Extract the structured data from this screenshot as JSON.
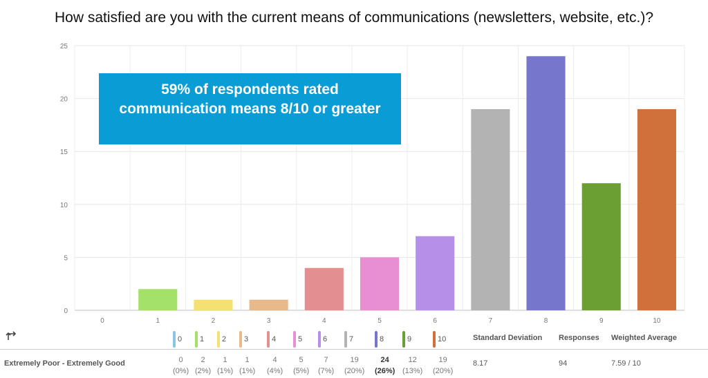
{
  "title": "How satisfied are you with the current means of communications (newsletters, website, etc.)?",
  "callout": "59% of respondents rated communication means 8/10 or greater",
  "chart_data": {
    "type": "bar",
    "categories": [
      "0",
      "1",
      "2",
      "3",
      "4",
      "5",
      "6",
      "7",
      "8",
      "9",
      "10"
    ],
    "values": [
      0,
      2,
      1,
      1,
      4,
      5,
      7,
      19,
      24,
      12,
      19
    ],
    "colors": [
      "#8ac6e0",
      "#a4e169",
      "#f5e171",
      "#e8b98a",
      "#e38f8f",
      "#e88ed3",
      "#b690e8",
      "#b3b3b3",
      "#7676cc",
      "#6b9e33",
      "#d0703a"
    ],
    "ylim": [
      0,
      25
    ],
    "yticks": [
      "0",
      "5",
      "10",
      "15",
      "20",
      "25"
    ],
    "grid": true
  },
  "table": {
    "row_label": "Extremely Poor - Extremely Good",
    "counts": [
      "0",
      "2",
      "1",
      "1",
      "4",
      "5",
      "7",
      "19",
      "24",
      "12",
      "19"
    ],
    "percents": [
      "(0%)",
      "(2%)",
      "(1%)",
      "(1%)",
      "(4%)",
      "(5%)",
      "(7%)",
      "(20%)",
      "(26%)",
      "(13%)",
      "(20%)"
    ],
    "headers": {
      "std": "Standard Deviation",
      "responses": "Responses",
      "weighted": "Weighted Average"
    },
    "values": {
      "std": "8.17",
      "responses": "94",
      "weighted": "7.59 / 10"
    }
  }
}
